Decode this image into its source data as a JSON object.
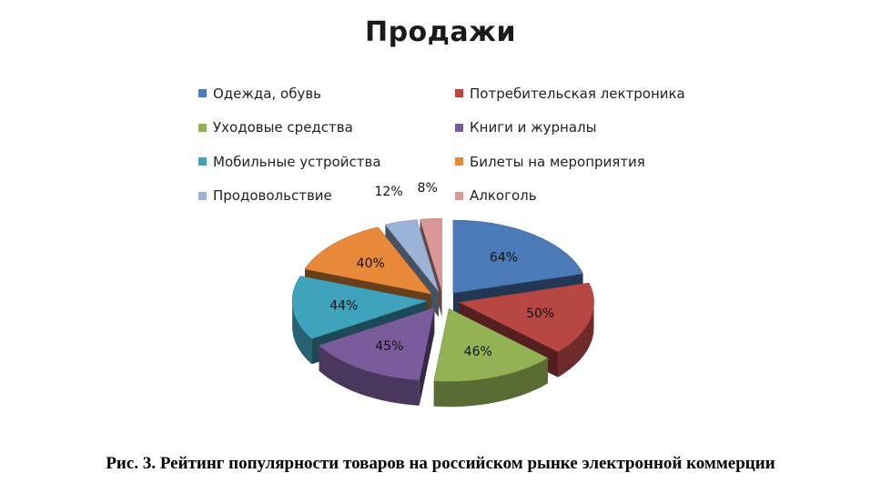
{
  "caption": "Рис. 3. Рейтинг популярности товаров на российском рынке электронной коммерции",
  "chart_data": {
    "type": "pie",
    "title": "Продажи",
    "style": "3d-exploded",
    "legend_position": "top",
    "categories": [
      "Одежда, обувь",
      "Потребительская лектроника",
      "Уходовые средства",
      "Книги и журналы",
      "Мобильные устройства",
      "Билеты на мероприятия",
      "Продовольствие",
      "Алкоголь"
    ],
    "values": [
      64,
      50,
      46,
      45,
      44,
      40,
      12,
      8
    ],
    "data_labels": [
      "64%",
      "50%",
      "46%",
      "45%",
      "44%",
      "40%",
      "12%",
      "8%"
    ],
    "colors": [
      "#4a7ab8",
      "#b84744",
      "#93b254",
      "#7a5c9c",
      "#3fa3bc",
      "#e8893a",
      "#9cb3d8",
      "#d99795"
    ]
  }
}
